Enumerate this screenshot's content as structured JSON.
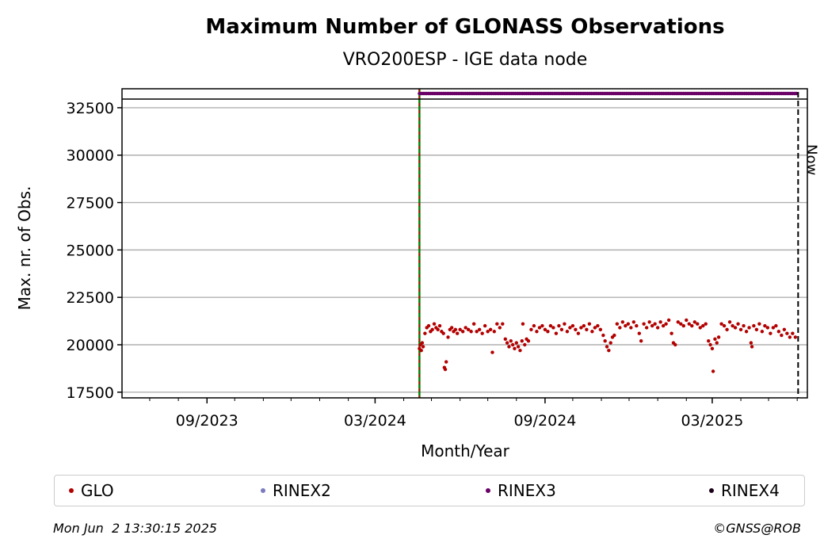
{
  "colors": {
    "GLO": "#b30000",
    "RINEX2": "#7b7bbf",
    "RINEX3": "#6a0067",
    "RINEX4": "#1a0018",
    "start_line": "#008000",
    "start_line_dash": "#cc0000",
    "grid": "#b0b0b0"
  },
  "legend": [
    {
      "name": "GLO",
      "color": "#b30000"
    },
    {
      "name": "RINEX2",
      "color": "#7b7bbf"
    },
    {
      "name": "RINEX3",
      "color": "#6a0067"
    },
    {
      "name": "RINEX4",
      "color": "#1a0018"
    }
  ],
  "footer": {
    "timestamp": "Mon Jun  2 13:30:15 2025",
    "credit": "©GNSS@ROB"
  },
  "chart_data": {
    "type": "scatter",
    "title": "Maximum Number of GLONASS Observations",
    "subtitle": "VRO200ESP - IGE data node",
    "xlabel": "Month/Year",
    "ylabel": "Max. nr. of Obs.",
    "xlim": [
      "2023-06-01",
      "2025-06-12"
    ],
    "ylim": [
      17200,
      33500
    ],
    "yticks": [
      17500,
      20000,
      22500,
      25000,
      27500,
      30000,
      32500
    ],
    "xticks": [
      {
        "date": "2023-09-01",
        "label": "09/2023"
      },
      {
        "date": "2024-03-01",
        "label": "03/2024"
      },
      {
        "date": "2024-09-01",
        "label": "09/2024"
      },
      {
        "date": "2025-03-01",
        "label": "03/2025"
      }
    ],
    "grid": "horizontal",
    "legend_position": "bottom",
    "data_start": "2024-04-18",
    "now_date": "2025-06-02",
    "now_label": "Now",
    "series": [
      {
        "name": "GLO",
        "points": [
          [
            "2024-04-18",
            19800
          ],
          [
            "2024-04-19",
            20000
          ],
          [
            "2024-04-20",
            19700
          ],
          [
            "2024-04-21",
            20100
          ],
          [
            "2024-04-22",
            19900
          ],
          [
            "2024-04-24",
            20600
          ],
          [
            "2024-04-26",
            20900
          ],
          [
            "2024-04-28",
            21000
          ],
          [
            "2024-04-30",
            20700
          ],
          [
            "2024-05-02",
            20800
          ],
          [
            "2024-05-04",
            21100
          ],
          [
            "2024-05-06",
            20900
          ],
          [
            "2024-05-08",
            20800
          ],
          [
            "2024-05-10",
            21000
          ],
          [
            "2024-05-12",
            20700
          ],
          [
            "2024-05-14",
            20600
          ],
          [
            "2024-05-15",
            18800
          ],
          [
            "2024-05-16",
            18700
          ],
          [
            "2024-05-17",
            19100
          ],
          [
            "2024-05-19",
            20400
          ],
          [
            "2024-05-21",
            20800
          ],
          [
            "2024-05-23",
            20900
          ],
          [
            "2024-05-25",
            20700
          ],
          [
            "2024-05-27",
            20800
          ],
          [
            "2024-05-29",
            20600
          ],
          [
            "2024-06-01",
            20800
          ],
          [
            "2024-06-04",
            20700
          ],
          [
            "2024-06-07",
            20900
          ],
          [
            "2024-06-10",
            20800
          ],
          [
            "2024-06-13",
            20700
          ],
          [
            "2024-06-16",
            21100
          ],
          [
            "2024-06-19",
            20700
          ],
          [
            "2024-06-22",
            20800
          ],
          [
            "2024-06-25",
            20600
          ],
          [
            "2024-06-28",
            21000
          ],
          [
            "2024-07-01",
            20700
          ],
          [
            "2024-07-04",
            20800
          ],
          [
            "2024-07-06",
            19600
          ],
          [
            "2024-07-08",
            20700
          ],
          [
            "2024-07-11",
            21100
          ],
          [
            "2024-07-14",
            20900
          ],
          [
            "2024-07-17",
            21100
          ],
          [
            "2024-07-20",
            20300
          ],
          [
            "2024-07-22",
            20100
          ],
          [
            "2024-07-24",
            19900
          ],
          [
            "2024-07-26",
            20200
          ],
          [
            "2024-07-28",
            20000
          ],
          [
            "2024-07-30",
            19800
          ],
          [
            "2024-08-01",
            20100
          ],
          [
            "2024-08-03",
            19900
          ],
          [
            "2024-08-05",
            19700
          ],
          [
            "2024-08-07",
            20200
          ],
          [
            "2024-08-08",
            21100
          ],
          [
            "2024-08-10",
            20000
          ],
          [
            "2024-08-12",
            20300
          ],
          [
            "2024-08-14",
            20200
          ],
          [
            "2024-08-17",
            20800
          ],
          [
            "2024-08-20",
            21000
          ],
          [
            "2024-08-23",
            20700
          ],
          [
            "2024-08-26",
            20900
          ],
          [
            "2024-08-29",
            21000
          ],
          [
            "2024-09-01",
            20800
          ],
          [
            "2024-09-04",
            20700
          ],
          [
            "2024-09-07",
            21000
          ],
          [
            "2024-09-10",
            20900
          ],
          [
            "2024-09-13",
            20600
          ],
          [
            "2024-09-16",
            21000
          ],
          [
            "2024-09-19",
            20800
          ],
          [
            "2024-09-22",
            21100
          ],
          [
            "2024-09-25",
            20700
          ],
          [
            "2024-09-28",
            20900
          ],
          [
            "2024-10-01",
            21000
          ],
          [
            "2024-10-04",
            20800
          ],
          [
            "2024-10-07",
            20600
          ],
          [
            "2024-10-10",
            20900
          ],
          [
            "2024-10-13",
            21000
          ],
          [
            "2024-10-16",
            20800
          ],
          [
            "2024-10-19",
            21100
          ],
          [
            "2024-10-22",
            20700
          ],
          [
            "2024-10-25",
            20900
          ],
          [
            "2024-10-28",
            21000
          ],
          [
            "2024-10-31",
            20800
          ],
          [
            "2024-11-03",
            20500
          ],
          [
            "2024-11-05",
            20200
          ],
          [
            "2024-11-07",
            19900
          ],
          [
            "2024-11-09",
            19700
          ],
          [
            "2024-11-11",
            20100
          ],
          [
            "2024-11-13",
            20400
          ],
          [
            "2024-11-15",
            20500
          ],
          [
            "2024-11-18",
            21100
          ],
          [
            "2024-11-21",
            20900
          ],
          [
            "2024-11-24",
            21200
          ],
          [
            "2024-11-27",
            21000
          ],
          [
            "2024-11-30",
            21100
          ],
          [
            "2024-12-03",
            20900
          ],
          [
            "2024-12-06",
            21200
          ],
          [
            "2024-12-09",
            21000
          ],
          [
            "2024-12-12",
            20600
          ],
          [
            "2024-12-14",
            20200
          ],
          [
            "2024-12-17",
            21100
          ],
          [
            "2024-12-20",
            20900
          ],
          [
            "2024-12-23",
            21200
          ],
          [
            "2024-12-26",
            21000
          ],
          [
            "2024-12-29",
            21100
          ],
          [
            "2025-01-01",
            20900
          ],
          [
            "2025-01-04",
            21200
          ],
          [
            "2025-01-07",
            21000
          ],
          [
            "2025-01-10",
            21100
          ],
          [
            "2025-01-13",
            21300
          ],
          [
            "2025-01-16",
            20600
          ],
          [
            "2025-01-18",
            20100
          ],
          [
            "2025-01-20",
            20000
          ],
          [
            "2025-01-23",
            21200
          ],
          [
            "2025-01-26",
            21100
          ],
          [
            "2025-01-29",
            21000
          ],
          [
            "2025-02-01",
            21300
          ],
          [
            "2025-02-04",
            21100
          ],
          [
            "2025-02-07",
            21000
          ],
          [
            "2025-02-10",
            21200
          ],
          [
            "2025-02-13",
            21100
          ],
          [
            "2025-02-16",
            20900
          ],
          [
            "2025-02-19",
            21000
          ],
          [
            "2025-02-22",
            21100
          ],
          [
            "2025-02-25",
            20200
          ],
          [
            "2025-02-27",
            20000
          ],
          [
            "2025-03-01",
            19800
          ],
          [
            "2025-03-02",
            18600
          ],
          [
            "2025-03-04",
            20300
          ],
          [
            "2025-03-06",
            20100
          ],
          [
            "2025-03-08",
            20400
          ],
          [
            "2025-03-11",
            21100
          ],
          [
            "2025-03-14",
            21000
          ],
          [
            "2025-03-17",
            20800
          ],
          [
            "2025-03-20",
            21200
          ],
          [
            "2025-03-23",
            21000
          ],
          [
            "2025-03-26",
            20900
          ],
          [
            "2025-03-29",
            21100
          ],
          [
            "2025-04-01",
            20800
          ],
          [
            "2025-04-04",
            21000
          ],
          [
            "2025-04-07",
            20700
          ],
          [
            "2025-04-10",
            20900
          ],
          [
            "2025-04-12",
            20100
          ],
          [
            "2025-04-13",
            19900
          ],
          [
            "2025-04-15",
            21000
          ],
          [
            "2025-04-18",
            20800
          ],
          [
            "2025-04-21",
            21100
          ],
          [
            "2025-04-24",
            20700
          ],
          [
            "2025-04-27",
            21000
          ],
          [
            "2025-04-30",
            20900
          ],
          [
            "2025-05-03",
            20600
          ],
          [
            "2025-05-06",
            20900
          ],
          [
            "2025-05-09",
            21000
          ],
          [
            "2025-05-12",
            20700
          ],
          [
            "2025-05-15",
            20500
          ],
          [
            "2025-05-18",
            20800
          ],
          [
            "2025-05-21",
            20600
          ],
          [
            "2025-05-24",
            20400
          ],
          [
            "2025-05-27",
            20600
          ],
          [
            "2025-05-30",
            20400
          ]
        ]
      },
      {
        "name": "RINEX3",
        "start": "2024-04-18",
        "end": "2025-05-31",
        "step_days": 2,
        "value": 33800
      }
    ]
  }
}
